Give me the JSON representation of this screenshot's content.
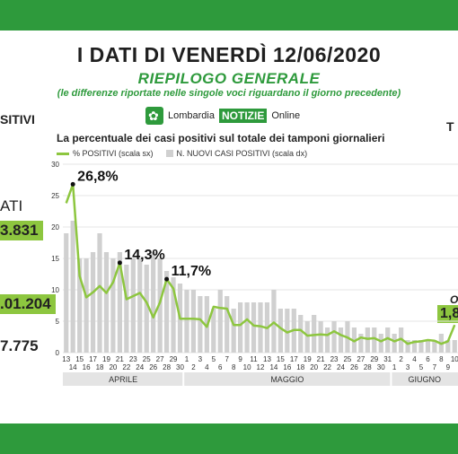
{
  "header": {
    "title": "I DATI DI VENERDÌ 12/06/2020",
    "subtitle": "RIEPILOGO GENERALE",
    "note": "(le differenze riportate nelle singole voci riguardano il giorno precedente)",
    "brand_prefix": "Lombardia",
    "brand_notizie": "NOTIZIE",
    "brand_suffix": "Online"
  },
  "colors": {
    "green": "#2e9a3c",
    "light_green": "#8dc63f",
    "bar": "#d0d0d0"
  },
  "side": {
    "left_heading": "SITIVI",
    "left_label": "ATI",
    "left_value1": "3.831",
    "left_value2": ".01.204",
    "left_value3": "7.775",
    "right_heading": "T",
    "right_italic": "Oc",
    "right_value": "1,8"
  },
  "chart_data": {
    "type": "bar+line",
    "title": "La percentuale dei casi positivi sul totale dei tamponi giornalieri",
    "legend": [
      "% POSITIVI (scala sx)",
      "N. NUOVI CASI POSITIVI (scala dx)"
    ],
    "y_left_ticks": [
      0,
      5,
      10,
      15,
      20,
      25,
      30
    ],
    "ylim": [
      0,
      30
    ],
    "x": [
      "13",
      "14",
      "15",
      "16",
      "17",
      "18",
      "19",
      "20",
      "21",
      "22",
      "23",
      "24",
      "25",
      "26",
      "27",
      "28",
      "29",
      "30",
      "1",
      "2",
      "3",
      "4",
      "5",
      "6",
      "7",
      "8",
      "9",
      "10",
      "11",
      "12",
      "13",
      "14",
      "15",
      "16",
      "17",
      "18",
      "19",
      "20",
      "21",
      "22",
      "23",
      "24",
      "25",
      "26",
      "27",
      "28",
      "29",
      "30",
      "31",
      "1",
      "2",
      "3",
      "4",
      "5",
      "6",
      "7",
      "8",
      "9",
      "10"
    ],
    "months": [
      "APRILE",
      "MAGGIO",
      "GIUGNO"
    ],
    "line_values": [
      23.8,
      26.8,
      12.2,
      8.8,
      9.6,
      10.6,
      9.5,
      11.2,
      14.3,
      8.5,
      9.0,
      9.5,
      8.0,
      5.6,
      8.0,
      11.7,
      10.2,
      5.4,
      5.4,
      5.4,
      5.3,
      4.1,
      7.3,
      7.1,
      7.0,
      4.4,
      4.4,
      5.3,
      4.3,
      4.2,
      3.9,
      4.8,
      3.9,
      3.2,
      3.6,
      3.6,
      2.7,
      2.8,
      2.9,
      2.8,
      3.4,
      2.8,
      2.4,
      1.8,
      2.4,
      2.2,
      2.3,
      1.8,
      2.3,
      1.8,
      2.2,
      1.4,
      1.7,
      1.8,
      2.0,
      1.9,
      1.4,
      1.8,
      4.4
    ],
    "bar_values": [
      19,
      21,
      15,
      15,
      16,
      19,
      16,
      15,
      16,
      14,
      15,
      15,
      14,
      16,
      15,
      13,
      12,
      11,
      10,
      10,
      9,
      9,
      7,
      10,
      9,
      7,
      8,
      8,
      8,
      8,
      8,
      10,
      7,
      7,
      7,
      6,
      5,
      6,
      5,
      4,
      5,
      4,
      5,
      4,
      3,
      4,
      4,
      3,
      4,
      3,
      4,
      2,
      2,
      2,
      2,
      2,
      3,
      2,
      2
    ],
    "annotations": [
      {
        "label": "26,8%",
        "index": 1,
        "value": 26.8
      },
      {
        "label": "14,3%",
        "index": 8,
        "value": 14.3
      },
      {
        "label": "11,7%",
        "index": 15,
        "value": 11.7
      }
    ]
  }
}
